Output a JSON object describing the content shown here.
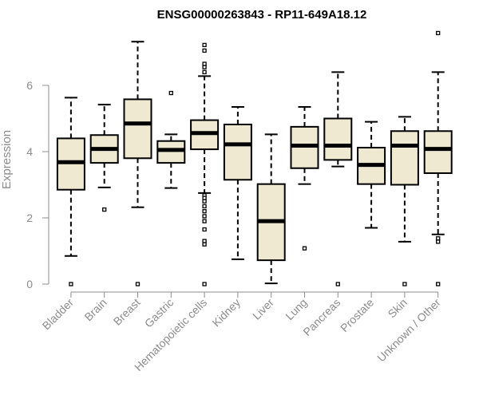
{
  "chart_data": {
    "type": "boxplot",
    "title": "ENSG00000263843 - RP11-649A18.12",
    "xlabel": "",
    "ylabel": "Expression",
    "ylim": [
      0,
      7.5
    ],
    "yticks": [
      0,
      2,
      4,
      6
    ],
    "grid": false,
    "colors": {
      "box_fill": "#efe9d2",
      "stroke": "#000000",
      "axis": "#8c8c8c"
    },
    "categories": [
      "Bladder",
      "Brain",
      "Breast",
      "Gastric",
      "Hematopoietic cells",
      "Kidney",
      "Liver",
      "Lung",
      "Pancreas",
      "Prostate",
      "Skin",
      "Unknown / Other"
    ],
    "boxes": [
      {
        "name": "Bladder",
        "low": 0.85,
        "q1": 2.85,
        "median": 3.68,
        "q3": 4.4,
        "high": 5.63,
        "outliers": [
          0.0
        ]
      },
      {
        "name": "Brain",
        "low": 2.92,
        "q1": 3.66,
        "median": 4.08,
        "q3": 4.5,
        "high": 5.42,
        "outliers": [
          2.25
        ]
      },
      {
        "name": "Breast",
        "low": 2.32,
        "q1": 3.8,
        "median": 4.85,
        "q3": 5.58,
        "high": 7.32,
        "outliers": [
          0.0
        ]
      },
      {
        "name": "Gastric",
        "low": 2.9,
        "q1": 3.66,
        "median": 4.05,
        "q3": 4.32,
        "high": 4.52,
        "outliers": [
          5.77
        ]
      },
      {
        "name": "Hematopoietic cells",
        "low": 2.75,
        "q1": 4.07,
        "median": 4.56,
        "q3": 4.95,
        "high": 6.28,
        "outliers": [
          7.22,
          7.05,
          6.65,
          6.55,
          6.4,
          2.68,
          2.6,
          2.5,
          2.35,
          2.2,
          2.05,
          1.9,
          1.65,
          1.3,
          1.2,
          0.0
        ]
      },
      {
        "name": "Kidney",
        "low": 0.75,
        "q1": 3.15,
        "median": 4.22,
        "q3": 4.82,
        "high": 5.35,
        "outliers": []
      },
      {
        "name": "Liver",
        "low": 0.02,
        "q1": 0.72,
        "median": 1.9,
        "q3": 3.02,
        "high": 4.52,
        "outliers": []
      },
      {
        "name": "Lung",
        "low": 3.02,
        "q1": 3.5,
        "median": 4.18,
        "q3": 4.75,
        "high": 5.35,
        "outliers": [
          1.08
        ]
      },
      {
        "name": "Pancreas",
        "low": 3.55,
        "q1": 3.75,
        "median": 4.18,
        "q3": 5.0,
        "high": 6.4,
        "outliers": [
          0.0
        ]
      },
      {
        "name": "Prostate",
        "low": 1.7,
        "q1": 3.02,
        "median": 3.6,
        "q3": 4.12,
        "high": 4.9,
        "outliers": []
      },
      {
        "name": "Skin",
        "low": 1.28,
        "q1": 3.0,
        "median": 4.18,
        "q3": 4.62,
        "high": 5.05,
        "outliers": [
          0.0
        ]
      },
      {
        "name": "Unknown / Other",
        "low": 1.5,
        "q1": 3.35,
        "median": 4.08,
        "q3": 4.62,
        "high": 6.4,
        "outliers": [
          7.58,
          1.38,
          1.28,
          0.0
        ]
      }
    ]
  }
}
